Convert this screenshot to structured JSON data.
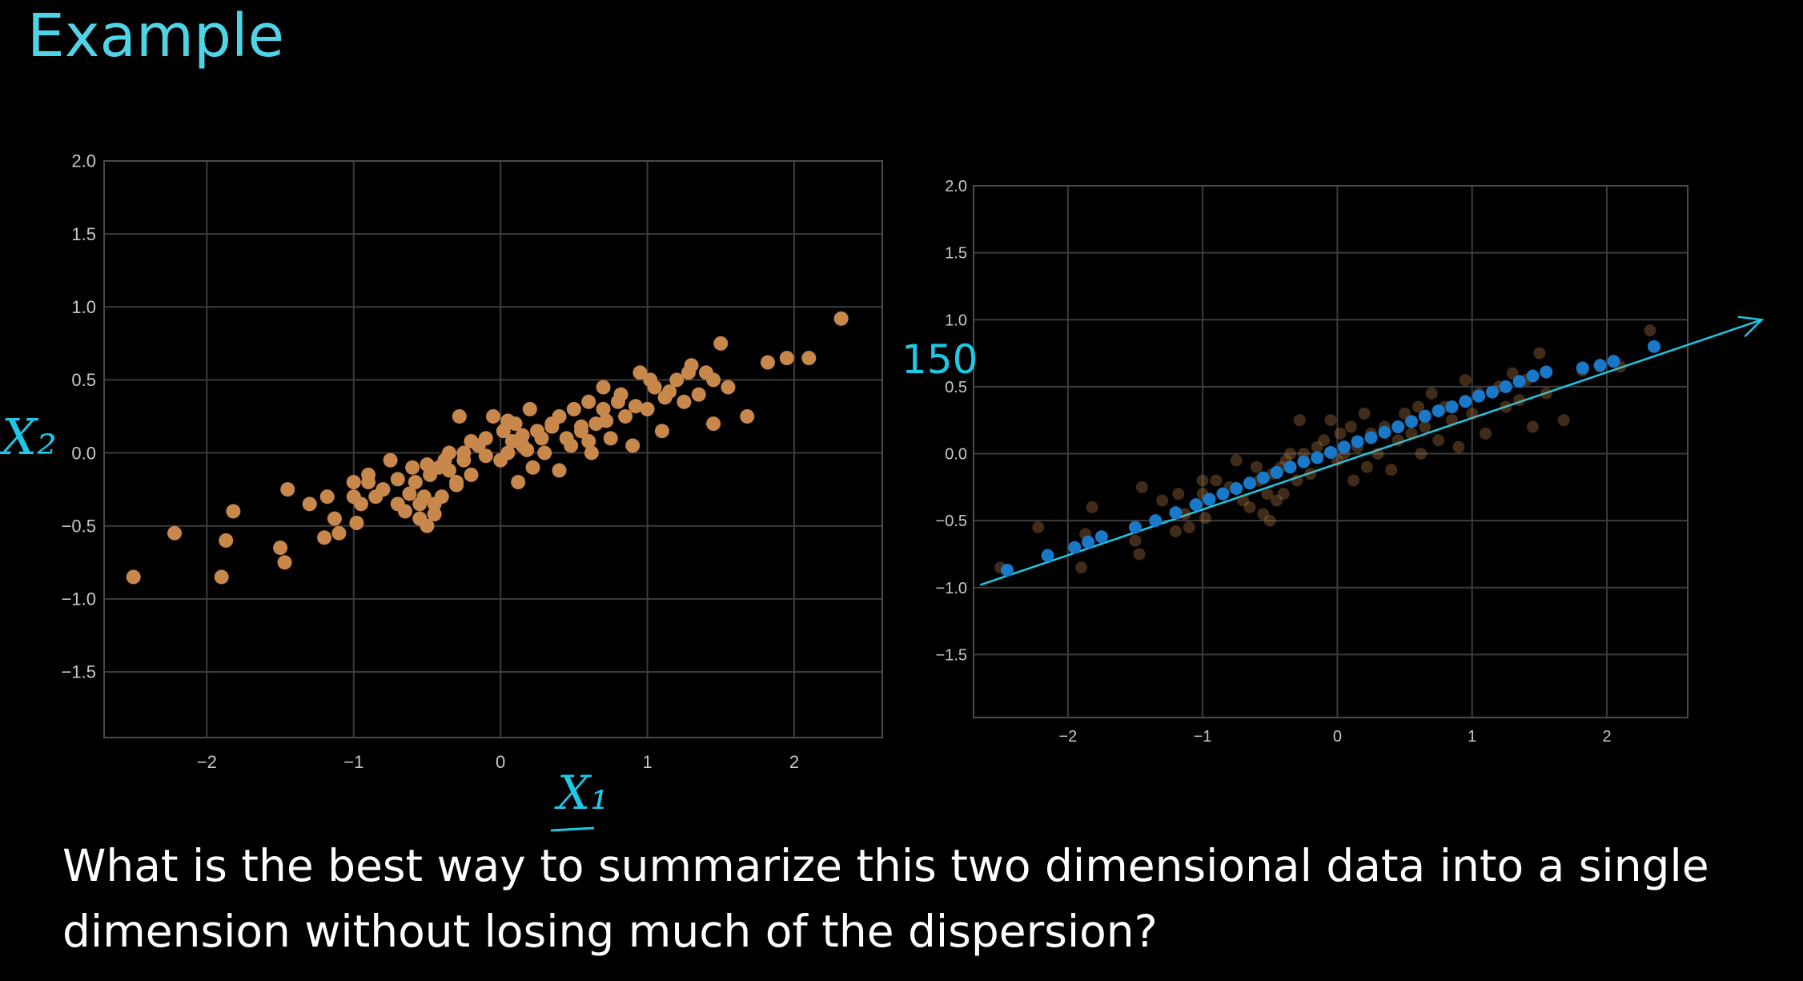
{
  "title": "Example",
  "caption": "What is the best way to summarize this two dimensional data into a single dimension without losing much of the dispersion?",
  "colors": {
    "background": "#000000",
    "title": "#4fd3e6",
    "points": "#c8884c",
    "projected": "#1a78c9",
    "annotation": "#1ec8e6",
    "grid": "#3c3c3c",
    "axes_frame": "#4a4a4a"
  },
  "annotations": {
    "left_ylabel": "X₂",
    "left_xlabel": "X₁",
    "right_mark": "150"
  },
  "chart_data": [
    {
      "type": "scatter",
      "xlabel": "X₁",
      "ylabel": "X₂",
      "xlim": [
        -2.7,
        2.6
      ],
      "ylim": [
        -1.95,
        2.0
      ],
      "xticks": [
        -2,
        -1,
        0,
        1,
        2
      ],
      "yticks": [
        -1.5,
        -1.0,
        -0.5,
        0.0,
        0.5,
        1.0,
        1.5,
        2.0
      ],
      "xtick_labels": [
        "−2",
        "−1",
        "0",
        "1",
        "2"
      ],
      "ytick_labels": [
        "−1.5",
        "−1.0",
        "−0.5",
        "0.0",
        "0.5",
        "1.0",
        "1.5",
        "2.0"
      ],
      "grid": true,
      "series": [
        {
          "x": [
            -2.5,
            -2.22,
            -1.9,
            -1.87,
            -1.82,
            -1.5,
            -1.47,
            -1.45,
            -1.3,
            -1.2,
            -1.18,
            -1.13,
            -1.1,
            -1.0,
            -1.0,
            -0.98,
            -0.95,
            -0.9,
            -0.85,
            -0.8,
            -0.75,
            -0.7,
            -0.65,
            -0.6,
            -0.58,
            -0.55,
            -0.52,
            -0.5,
            -0.48,
            -0.45,
            -0.42,
            -0.4,
            -0.38,
            -0.35,
            -0.3,
            -0.28,
            -0.25,
            -0.2,
            -0.15,
            -0.1,
            -0.05,
            0.0,
            0.02,
            0.05,
            0.1,
            0.12,
            0.15,
            0.2,
            0.22,
            0.25,
            0.3,
            0.35,
            0.4,
            0.45,
            0.5,
            0.55,
            0.6,
            0.62,
            0.65,
            0.7,
            0.75,
            0.8,
            0.85,
            0.9,
            0.95,
            1.0,
            1.05,
            1.1,
            1.2,
            1.25,
            1.3,
            1.35,
            1.4,
            1.45,
            1.5,
            1.55,
            1.68,
            1.82,
            1.95,
            2.1,
            2.32,
            -0.62,
            -0.45,
            -0.35,
            -0.1,
            0.08,
            0.18,
            0.28,
            0.55,
            0.72,
            0.92,
            1.12,
            -0.7,
            -0.5,
            -0.2,
            0.35,
            0.6,
            0.82,
            -0.9,
            -0.3,
            0.05,
            0.48,
            1.02,
            1.28,
            -0.55,
            -0.25,
            0.15,
            0.4,
            0.7,
            1.15,
            1.45
          ],
          "y": [
            -0.85,
            -0.55,
            -0.85,
            -0.6,
            -0.4,
            -0.65,
            -0.75,
            -0.25,
            -0.35,
            -0.58,
            -0.3,
            -0.45,
            -0.55,
            -0.3,
            -0.2,
            -0.48,
            -0.35,
            -0.2,
            -0.3,
            -0.25,
            -0.05,
            -0.35,
            -0.4,
            -0.1,
            -0.2,
            -0.45,
            -0.3,
            -0.5,
            -0.15,
            -0.35,
            -0.1,
            -0.3,
            -0.05,
            0.0,
            -0.2,
            0.25,
            0.0,
            -0.15,
            0.05,
            0.1,
            0.25,
            -0.05,
            0.15,
            0.0,
            0.2,
            -0.2,
            0.05,
            0.3,
            -0.1,
            0.15,
            0.0,
            0.2,
            -0.12,
            0.1,
            0.3,
            0.15,
            0.35,
            0.0,
            0.2,
            0.45,
            0.1,
            0.35,
            0.25,
            0.05,
            0.55,
            0.3,
            0.45,
            0.15,
            0.5,
            0.35,
            0.6,
            0.4,
            0.55,
            0.2,
            0.75,
            0.45,
            0.25,
            0.62,
            0.65,
            0.65,
            0.92,
            -0.28,
            -0.42,
            -0.12,
            -0.02,
            0.08,
            0.02,
            0.1,
            0.18,
            0.22,
            0.32,
            0.38,
            -0.18,
            -0.08,
            0.08,
            0.18,
            0.08,
            0.4,
            -0.15,
            -0.22,
            0.22,
            0.05,
            0.5,
            0.55,
            -0.35,
            -0.05,
            0.12,
            0.25,
            0.3,
            0.42,
            0.5
          ]
        }
      ]
    },
    {
      "type": "scatter",
      "xlim": [
        -2.7,
        2.6
      ],
      "ylim": [
        -1.97,
        2.0
      ],
      "xticks": [
        -2,
        -1,
        0,
        1,
        2
      ],
      "yticks": [
        -1.5,
        -1.0,
        -0.5,
        0.0,
        0.5,
        1.0,
        1.5,
        2.0
      ],
      "xtick_labels": [
        "−2",
        "−1",
        "0",
        "1",
        "2"
      ],
      "ytick_labels": [
        "−1.5",
        "−1.0",
        "−0.5",
        "0.0",
        "0.5",
        "1.0",
        "1.5",
        "2.0"
      ],
      "grid": true,
      "series": [
        {
          "x": [
            -2.5,
            -2.22,
            -1.9,
            -1.87,
            -1.82,
            -1.5,
            -1.47,
            -1.45,
            -1.3,
            -1.2,
            -1.18,
            -1.13,
            -1.1,
            -1.0,
            -1.0,
            -0.98,
            -0.95,
            -0.9,
            -0.85,
            -0.8,
            -0.75,
            -0.7,
            -0.65,
            -0.6,
            -0.58,
            -0.55,
            -0.52,
            -0.5,
            -0.48,
            -0.45,
            -0.42,
            -0.4,
            -0.38,
            -0.35,
            -0.3,
            -0.28,
            -0.25,
            -0.2,
            -0.15,
            -0.1,
            -0.05,
            0.0,
            0.02,
            0.05,
            0.1,
            0.12,
            0.15,
            0.2,
            0.22,
            0.25,
            0.3,
            0.35,
            0.4,
            0.45,
            0.5,
            0.55,
            0.6,
            0.62,
            0.65,
            0.7,
            0.75,
            0.8,
            0.85,
            0.9,
            0.95,
            1.0,
            1.05,
            1.1,
            1.2,
            1.25,
            1.3,
            1.35,
            1.4,
            1.45,
            1.5,
            1.55,
            1.68,
            1.82,
            1.95,
            2.1,
            2.32
          ],
          "y": [
            -0.85,
            -0.55,
            -0.85,
            -0.6,
            -0.4,
            -0.65,
            -0.75,
            -0.25,
            -0.35,
            -0.58,
            -0.3,
            -0.45,
            -0.55,
            -0.3,
            -0.2,
            -0.48,
            -0.35,
            -0.2,
            -0.3,
            -0.25,
            -0.05,
            -0.35,
            -0.4,
            -0.1,
            -0.2,
            -0.45,
            -0.3,
            -0.5,
            -0.15,
            -0.35,
            -0.1,
            -0.3,
            -0.05,
            0.0,
            -0.2,
            0.25,
            0.0,
            -0.15,
            0.05,
            0.1,
            0.25,
            -0.05,
            0.15,
            0.0,
            0.2,
            -0.2,
            0.05,
            0.3,
            -0.1,
            0.15,
            0.0,
            0.2,
            -0.12,
            0.1,
            0.3,
            0.15,
            0.35,
            0.0,
            0.2,
            0.45,
            0.1,
            0.35,
            0.25,
            0.05,
            0.55,
            0.3,
            0.45,
            0.15,
            0.5,
            0.35,
            0.6,
            0.4,
            0.55,
            0.2,
            0.75,
            0.45,
            0.25,
            0.62,
            0.65,
            0.65,
            0.92
          ],
          "style": "faded"
        },
        {
          "x": [
            -2.45,
            -2.15,
            -1.95,
            -1.85,
            -1.75,
            -1.5,
            -1.35,
            -1.2,
            -1.05,
            -0.95,
            -0.85,
            -0.75,
            -0.65,
            -0.55,
            -0.45,
            -0.35,
            -0.25,
            -0.15,
            -0.05,
            0.05,
            0.15,
            0.25,
            0.35,
            0.45,
            0.55,
            0.65,
            0.75,
            0.85,
            0.95,
            1.05,
            1.15,
            1.25,
            1.35,
            1.45,
            1.55,
            1.82,
            1.95,
            2.05,
            2.35
          ],
          "y": [
            -0.87,
            -0.76,
            -0.7,
            -0.66,
            -0.62,
            -0.55,
            -0.5,
            -0.44,
            -0.38,
            -0.34,
            -0.3,
            -0.26,
            -0.22,
            -0.18,
            -0.14,
            -0.1,
            -0.06,
            -0.03,
            0.01,
            0.05,
            0.09,
            0.12,
            0.16,
            0.2,
            0.24,
            0.28,
            0.32,
            0.35,
            0.39,
            0.43,
            0.46,
            0.5,
            0.54,
            0.58,
            0.61,
            0.64,
            0.66,
            0.69,
            0.8
          ],
          "style": "projected"
        }
      ],
      "annotation_line": {
        "from": [
          -2.65,
          -0.98
        ],
        "to": [
          3.15,
          1.0
        ]
      }
    }
  ]
}
